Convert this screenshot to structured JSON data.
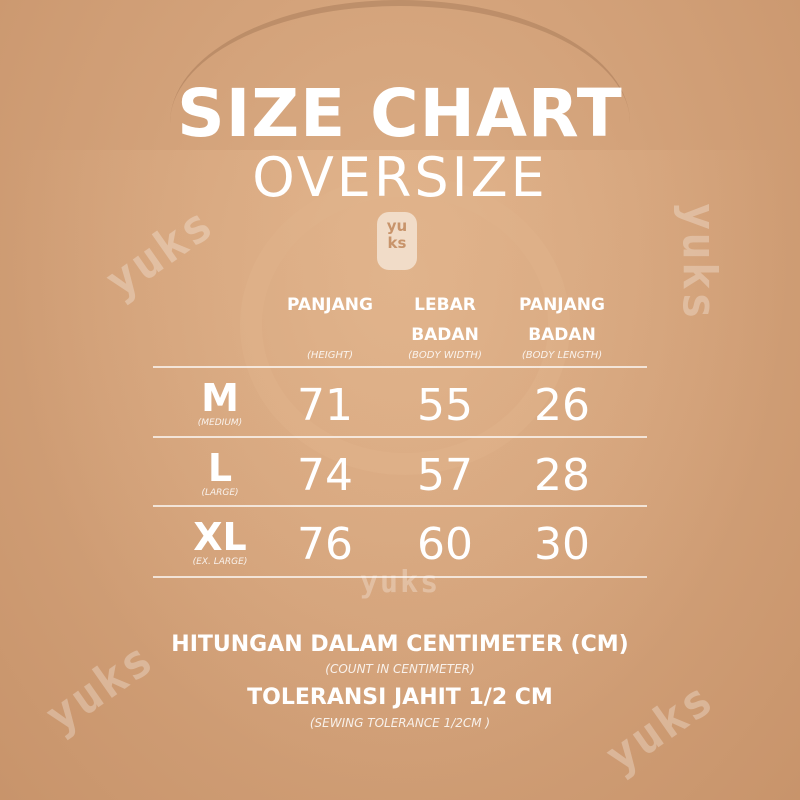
{
  "title": "SIZE CHART",
  "subtitle": "OVERSIZE",
  "brand": "yuks",
  "columns": [
    {
      "label": "PANJANG",
      "label2": "",
      "sub": "(HEIGHT)"
    },
    {
      "label": "LEBAR",
      "label2": "BADAN",
      "sub": "(BODY WIDTH)"
    },
    {
      "label": "PANJANG",
      "label2": "BADAN",
      "sub": "(BODY LENGTH)"
    }
  ],
  "rows": [
    {
      "size": "M",
      "sub": "(MEDIUM)",
      "values": [
        "71",
        "55",
        "26"
      ]
    },
    {
      "size": "L",
      "sub": "(LARGE)",
      "values": [
        "74",
        "57",
        "28"
      ]
    },
    {
      "size": "XL",
      "sub": "(EX. LARGE)",
      "values": [
        "76",
        "60",
        "30"
      ]
    }
  ],
  "notes": [
    {
      "text": "HITUNGAN DALAM CENTIMETER (CM)",
      "sub": "(COUNT IN CENTIMETER)"
    },
    {
      "text": "TOLERANSI JAHIT 1/2 CM",
      "sub": "(SEWING TOLERANCE 1/2CM )"
    }
  ],
  "colors": {
    "background": "#d3a27a",
    "text": "#ffffff"
  }
}
